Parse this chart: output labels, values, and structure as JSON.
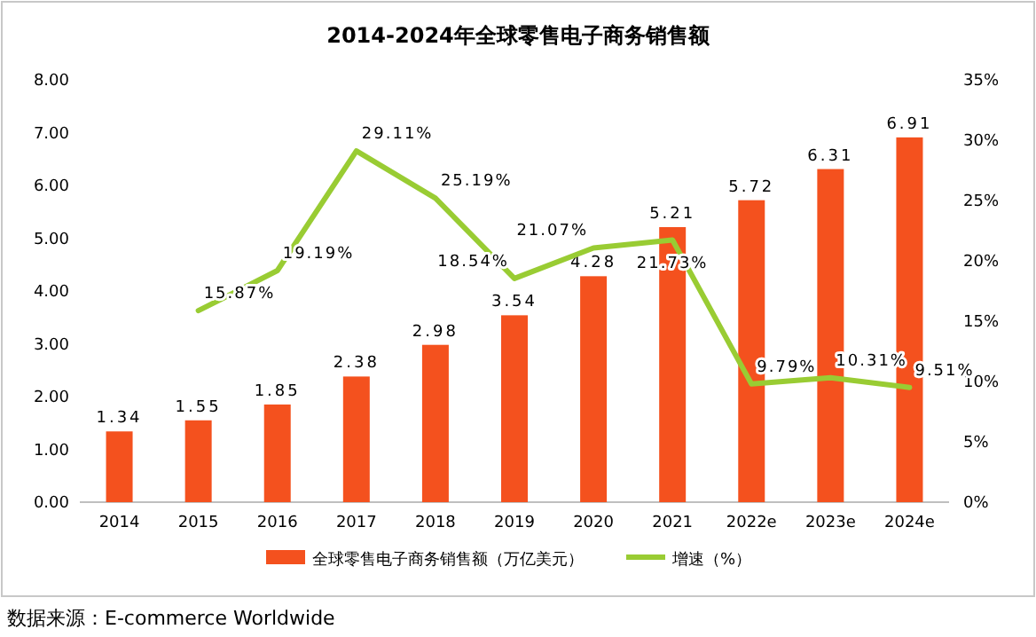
{
  "chart_data": {
    "type": "bar",
    "title": "2014-2024年全球零售电子商务销售额",
    "categories": [
      "2014",
      "2015",
      "2016",
      "2017",
      "2018",
      "2019",
      "2020",
      "2021",
      "2022e",
      "2023e",
      "2024e"
    ],
    "series": [
      {
        "name": "全球零售电子商务销售额（万亿美元）",
        "color": "#f4511e",
        "values": [
          1.34,
          1.55,
          1.85,
          2.38,
          2.98,
          3.54,
          4.28,
          5.21,
          5.72,
          6.31,
          6.91
        ]
      },
      {
        "name": "增速（%）",
        "type": "line",
        "axis": "y2",
        "color": "#99cc33",
        "values": [
          null,
          15.87,
          19.19,
          29.11,
          25.19,
          18.54,
          21.07,
          21.73,
          9.79,
          10.31,
          9.51
        ],
        "value_labels": [
          null,
          "15.87%",
          "19.19%",
          "29.11%",
          "25.19%",
          "18.54%",
          "21.07%",
          "21.73%",
          "9.79%",
          "10.31%",
          "9.51%"
        ]
      }
    ],
    "data_labels": true,
    "ylim": [
      0,
      8
    ],
    "yticks": [
      {
        "value": 0,
        "label": "0.00"
      },
      {
        "value": 1,
        "label": "1.00"
      },
      {
        "value": 2,
        "label": "2.00"
      },
      {
        "value": 3,
        "label": "3.00"
      },
      {
        "value": 4,
        "label": "4.00"
      },
      {
        "value": 5,
        "label": "5.00"
      },
      {
        "value": 6,
        "label": "6.00"
      },
      {
        "value": 7,
        "label": "7.00"
      },
      {
        "value": 8,
        "label": "8.00"
      }
    ],
    "y2lim": [
      0,
      35
    ],
    "y2ticks": [
      {
        "value": 0,
        "label": "0%"
      },
      {
        "value": 5,
        "label": "5%"
      },
      {
        "value": 10,
        "label": "10%"
      },
      {
        "value": 15,
        "label": "15%"
      },
      {
        "value": 20,
        "label": "20%"
      },
      {
        "value": 25,
        "label": "25%"
      },
      {
        "value": 30,
        "label": "30%"
      },
      {
        "value": 35,
        "label": "35%"
      }
    ],
    "legend": "bottom",
    "annotations": [
      "数据来源：E-commerce Worldwide"
    ]
  }
}
